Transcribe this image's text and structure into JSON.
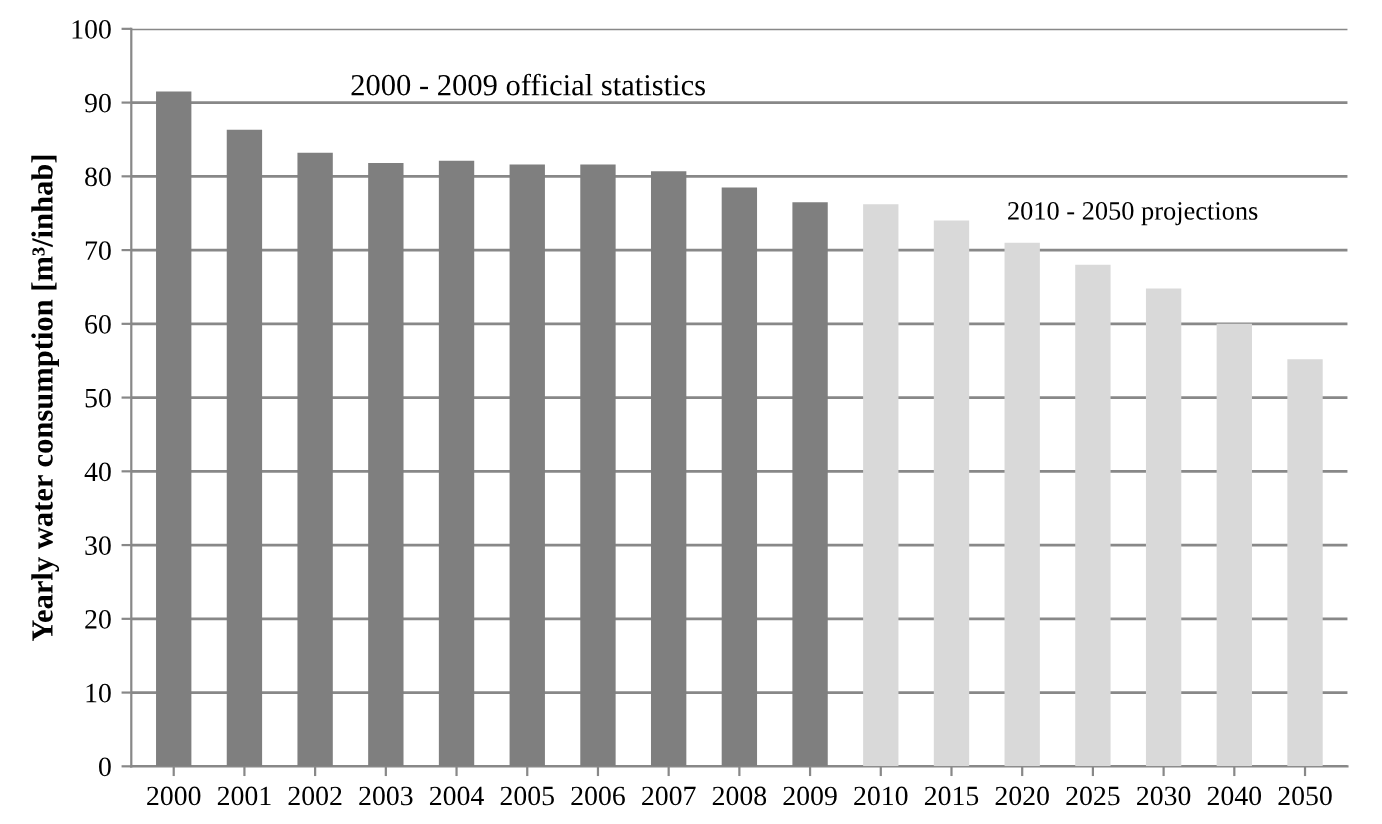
{
  "chart_data": {
    "type": "bar",
    "ylabel": "Yearly water consumption [m³/inhab]",
    "categories": [
      "2000",
      "2001",
      "2002",
      "2003",
      "2004",
      "2005",
      "2006",
      "2007",
      "2008",
      "2009",
      "2010",
      "2015",
      "2020",
      "2025",
      "2030",
      "2040",
      "2050"
    ],
    "values": [
      91.5,
      86.3,
      83.2,
      81.8,
      82.1,
      81.6,
      81.6,
      80.7,
      78.5,
      76.5,
      76.2,
      74,
      71,
      68,
      64.8,
      60,
      55.2
    ],
    "colors": [
      "#7f7f7f",
      "#7f7f7f",
      "#7f7f7f",
      "#7f7f7f",
      "#7f7f7f",
      "#7f7f7f",
      "#7f7f7f",
      "#7f7f7f",
      "#7f7f7f",
      "#7f7f7f",
      "#d9d9d9",
      "#d9d9d9",
      "#d9d9d9",
      "#d9d9d9",
      "#d9d9d9",
      "#d9d9d9",
      "#d9d9d9"
    ],
    "ylim": [
      0,
      100
    ],
    "yticks": [
      0,
      10,
      20,
      30,
      40,
      50,
      60,
      70,
      80,
      90,
      100
    ],
    "grid": "y",
    "annotations": [
      "2000 - 2009 official statistics",
      "2010 - 2050 projections"
    ]
  }
}
